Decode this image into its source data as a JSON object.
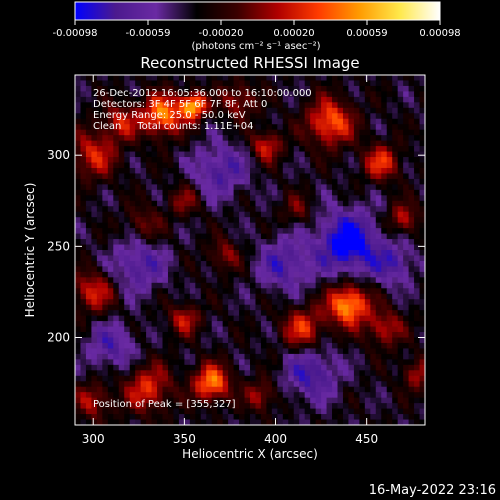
{
  "chart_data": {
    "type": "heatmap",
    "title": "Reconstructed RHESSI Image",
    "xlabel": "Heliocentric X (arcsec)",
    "ylabel": "Heliocentric Y (arcsec)",
    "xlim": [
      290,
      482
    ],
    "ylim": [
      152,
      344
    ],
    "x_ticks": [
      300,
      350,
      400,
      450
    ],
    "y_ticks": [
      200,
      250,
      300
    ],
    "colorbar": {
      "min": -0.00098,
      "max": 0.00098,
      "tick_labels": [
        "-0.00098",
        "-0.00059",
        "-0.00020",
        "0.00020",
        "0.00059",
        "0.00098"
      ],
      "unit_label": "(photons cm⁻² s⁻¹ asec⁻²)",
      "colormap": [
        "#0000ff",
        "#4b1a8e",
        "#6a2aa3",
        "#000000",
        "#3a0000",
        "#b00000",
        "#ff3b00",
        "#ff9a00",
        "#ffe84a",
        "#ffffff"
      ]
    },
    "annotations": [
      "26-Dec-2012 16:05:36.000 to 16:10:00.000",
      "Detectors: 3F 4F 5F 6F 7F 8F, Att 0",
      "Energy Range: 25.0 - 50.0 keV",
      "Clean     Total counts: 1.11E+04"
    ],
    "peak_label": "Position of Peak = [355,327]",
    "blobs": [
      {
        "x": 338,
        "y": 322,
        "sigma": 8,
        "amp": 0.85
      },
      {
        "x": 355,
        "y": 327,
        "sigma": 5,
        "amp": 0.98
      },
      {
        "x": 300,
        "y": 300,
        "sigma": 9,
        "amp": 0.55
      },
      {
        "x": 315,
        "y": 318,
        "sigma": 7,
        "amp": 0.5
      },
      {
        "x": 380,
        "y": 330,
        "sigma": 7,
        "amp": 0.45
      },
      {
        "x": 395,
        "y": 305,
        "sigma": 6,
        "amp": 0.55
      },
      {
        "x": 430,
        "y": 318,
        "sigma": 9,
        "amp": 0.75
      },
      {
        "x": 458,
        "y": 296,
        "sigma": 7,
        "amp": 0.6
      },
      {
        "x": 470,
        "y": 265,
        "sigma": 6,
        "amp": 0.5
      },
      {
        "x": 440,
        "y": 218,
        "sigma": 8,
        "amp": 0.95
      },
      {
        "x": 415,
        "y": 205,
        "sigma": 8,
        "amp": 0.6
      },
      {
        "x": 460,
        "y": 205,
        "sigma": 7,
        "amp": 0.5
      },
      {
        "x": 365,
        "y": 175,
        "sigma": 7,
        "amp": 0.85
      },
      {
        "x": 330,
        "y": 172,
        "sigma": 9,
        "amp": 0.6
      },
      {
        "x": 300,
        "y": 165,
        "sigma": 7,
        "amp": 0.45
      },
      {
        "x": 392,
        "y": 168,
        "sigma": 6,
        "amp": 0.45
      },
      {
        "x": 300,
        "y": 225,
        "sigma": 8,
        "amp": 0.55
      },
      {
        "x": 328,
        "y": 262,
        "sigma": 7,
        "amp": 0.35
      },
      {
        "x": 350,
        "y": 210,
        "sigma": 6,
        "amp": 0.5
      },
      {
        "x": 372,
        "y": 245,
        "sigma": 6,
        "amp": 0.4
      },
      {
        "x": 350,
        "y": 275,
        "sigma": 6,
        "amp": 0.35
      },
      {
        "x": 412,
        "y": 270,
        "sigma": 6,
        "amp": 0.3
      },
      {
        "x": 478,
        "y": 180,
        "sigma": 6,
        "amp": 0.45
      },
      {
        "x": 440,
        "y": 252,
        "sigma": 12,
        "amp": -0.75
      },
      {
        "x": 370,
        "y": 292,
        "sigma": 10,
        "amp": -0.45
      },
      {
        "x": 325,
        "y": 240,
        "sigma": 10,
        "amp": -0.45
      },
      {
        "x": 420,
        "y": 180,
        "sigma": 10,
        "amp": -0.5
      },
      {
        "x": 405,
        "y": 240,
        "sigma": 10,
        "amp": -0.45
      },
      {
        "x": 310,
        "y": 195,
        "sigma": 9,
        "amp": -0.4
      },
      {
        "x": 465,
        "y": 240,
        "sigma": 8,
        "amp": -0.4
      }
    ]
  },
  "footer": {
    "timestamp": "16-May-2022 23:16"
  }
}
